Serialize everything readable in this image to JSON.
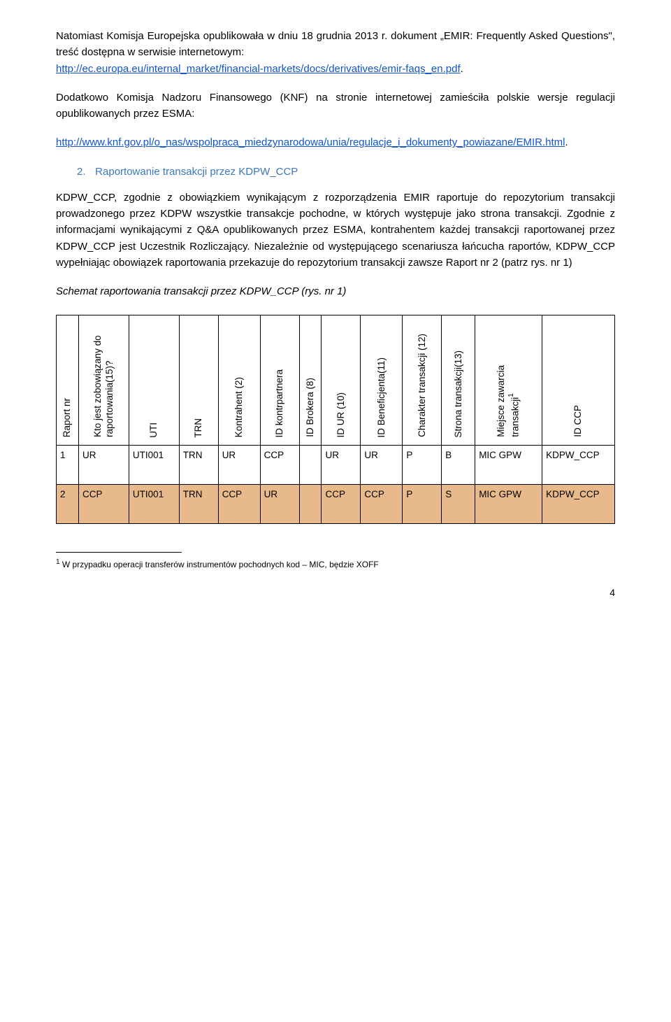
{
  "para1_a": "Natomiast Komisja Europejska opublikowała w dniu 18 grudnia 2013 r. dokument „EMIR: Frequently Asked Questions\", treść dostępna w serwisie internetowym:",
  "link1": "http://ec.europa.eu/internal_market/financial-markets/docs/derivatives/emir-faqs_en.pdf",
  "para2": "Dodatkowo Komisja Nadzoru Finansowego (KNF) na stronie internetowej zamieściła polskie wersje regulacji opublikowanych przez ESMA:",
  "link2": "http://www.knf.gov.pl/o_nas/wspolpraca_miedzynarodowa/unia/regulacje_i_dokumenty_powiazane/EMIR.html",
  "section2_num": "2.",
  "section2_title": "Raportowanie transakcji przez KDPW_CCP",
  "para3": "KDPW_CCP, zgodnie z obowiązkiem wynikającym z rozporządzenia EMIR raportuje do repozytorium transakcji prowadzonego przez KDPW wszystkie transakcje pochodne, w których występuje jako strona transakcji. Zgodnie z informacjami wynikającymi z Q&A opublikowanych przez ESMA, kontrahentem każdej transakcji raportowanej przez KDPW_CCP jest Uczestnik Rozliczający. Niezależnie od występującego scenariusza łańcucha raportów, KDPW_CCP wypełniając obowiązek raportowania przekazuje do repozytorium transakcji zawsze Raport nr 2 (patrz rys. nr 1)",
  "caption": "Schemat raportowania transakcji przez KDPW_CCP (rys. nr 1)",
  "headers": {
    "h0": "Raport nr",
    "h1": "Kto jest zobowiązany do raportowania(15)?",
    "h2": "UTI",
    "h3": "TRN",
    "h4": "Kontrahent (2)",
    "h5": "ID kontrpartnera",
    "h6": "ID Brokera (8)",
    "h7": "ID UR (10)",
    "h8": "ID Beneficjenta(11)",
    "h9": "Charakter transakcji (12)",
    "h10": "Strona transakcji(13)",
    "h11a": "Miejsce zawarcia",
    "h11b": "transakcji",
    "h12": "ID CCP"
  },
  "row1": {
    "c0": "1",
    "c1": "UR",
    "c2": "UTI001",
    "c3": "TRN",
    "c4": "UR",
    "c5": "CCP",
    "c6": "",
    "c7": "UR",
    "c8": "UR",
    "c9": "P",
    "c10": "B",
    "c11": "MIC GPW",
    "c12": "KDPW_CCP"
  },
  "row2": {
    "c0": "2",
    "c1": "CCP",
    "c2": "UTI001",
    "c3": "TRN",
    "c4": "CCP",
    "c5": "UR",
    "c6": "",
    "c7": "CCP",
    "c8": "CCP",
    "c9": "P",
    "c10": "S",
    "c11": "MIC GPW",
    "c12": "KDPW_CCP"
  },
  "footnote_num": "1",
  "footnote_text": " W przypadku operacji transferów instrumentów pochodnych kod – MIC, będzie XOFF",
  "pagenum": "4",
  "colwidths": [
    "4%",
    "9%",
    "9%",
    "7%",
    "7.5%",
    "7%",
    "4%",
    "7%",
    "7.5%",
    "7%",
    "6%",
    "12%",
    "13%"
  ],
  "orange_row2_idx": [
    0,
    1,
    2,
    3,
    4,
    5,
    6,
    7,
    8,
    9,
    10,
    11,
    12
  ]
}
